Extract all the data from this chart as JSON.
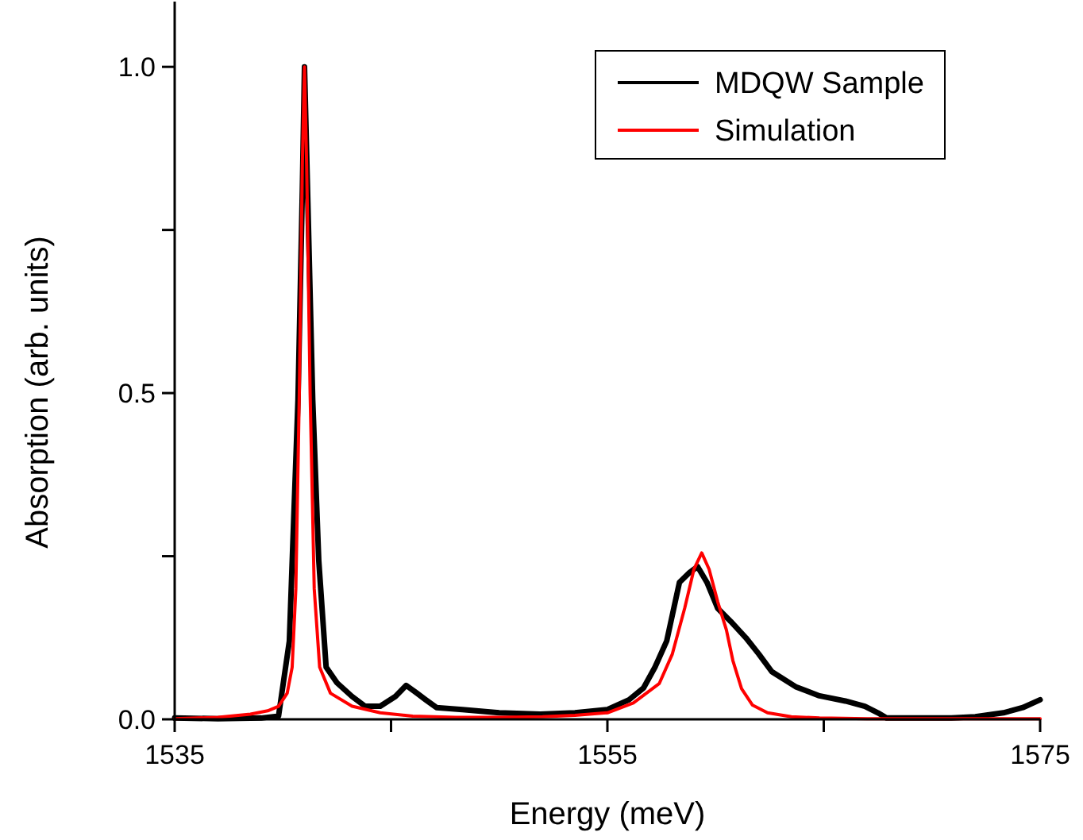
{
  "chart_data": {
    "type": "line",
    "xlabel": "Energy (meV)",
    "ylabel": "Absorption (arb. units)",
    "xlim": [
      1535,
      1575
    ],
    "ylim": [
      0,
      1.1
    ],
    "xticks": [
      1535,
      {
        "value": 1545,
        "label": null
      },
      1555,
      {
        "value": 1565,
        "label": null
      },
      1575
    ],
    "yticks": [
      {
        "value": 0,
        "label": "0.0"
      },
      {
        "value": 0.25,
        "label": null
      },
      {
        "value": 0.5,
        "label": "0.5"
      },
      {
        "value": 0.75,
        "label": null
      },
      {
        "value": 1,
        "label": "1.0"
      }
    ],
    "grid": false,
    "legend": "top right",
    "marker": "none",
    "line_style": "solid",
    "series": [
      {
        "name": "MDQW Sample",
        "color": "#000000",
        "x": [
          1535,
          1537,
          1539,
          1539.8,
          1540.3,
          1540.7,
          1540.9,
          1541.0,
          1541.15,
          1541.38,
          1541.66,
          1542.0,
          1542.5,
          1543.2,
          1543.8,
          1544.5,
          1545.2,
          1545.7,
          1546.2,
          1546.6,
          1547.1,
          1548.3,
          1550,
          1551.9,
          1553.5,
          1555,
          1556,
          1556.67,
          1557.2,
          1557.74,
          1558.33,
          1558.8,
          1559.17,
          1559.6,
          1560.1,
          1560.7,
          1561.4,
          1562.0,
          1562.6,
          1563.7,
          1564.8,
          1566.0,
          1566.9,
          1567.5,
          1567.9,
          1569,
          1570.9,
          1572,
          1573.3,
          1574.2,
          1575
        ],
        "values": [
          0.002,
          0.001,
          0.002,
          0.005,
          0.12,
          0.49,
          0.81,
          1.0,
          0.8,
          0.49,
          0.243,
          0.08,
          0.056,
          0.035,
          0.02,
          0.02,
          0.035,
          0.052,
          0.04,
          0.03,
          0.018,
          0.015,
          0.01,
          0.008,
          0.01,
          0.015,
          0.03,
          0.048,
          0.08,
          0.12,
          0.21,
          0.225,
          0.234,
          0.21,
          0.17,
          0.15,
          0.125,
          0.1,
          0.073,
          0.05,
          0.036,
          0.028,
          0.02,
          0.01,
          0.002,
          0.002,
          0.002,
          0.004,
          0.01,
          0.018,
          0.03
        ]
      },
      {
        "name": "Simulation",
        "color": "#ff0000",
        "x": [
          1535,
          1537,
          1538.5,
          1539.3,
          1539.8,
          1540.2,
          1540.43,
          1540.6,
          1540.76,
          1540.9,
          1541.0,
          1541.1,
          1541.26,
          1541.45,
          1541.7,
          1542.2,
          1543.2,
          1544.5,
          1546,
          1548,
          1550,
          1552,
          1553.5,
          1555,
          1556.2,
          1557.4,
          1558.0,
          1558.57,
          1559.0,
          1559.36,
          1559.7,
          1560.1,
          1560.5,
          1560.8,
          1561.2,
          1561.7,
          1562.4,
          1563.5,
          1564.8,
          1567,
          1570,
          1575
        ],
        "values": [
          0.001,
          0.003,
          0.008,
          0.013,
          0.02,
          0.04,
          0.08,
          0.2,
          0.5,
          0.85,
          1.0,
          0.85,
          0.5,
          0.2,
          0.08,
          0.04,
          0.02,
          0.01,
          0.005,
          0.003,
          0.003,
          0.004,
          0.006,
          0.01,
          0.025,
          0.055,
          0.1,
          0.17,
          0.23,
          0.255,
          0.23,
          0.18,
          0.137,
          0.09,
          0.047,
          0.022,
          0.01,
          0.004,
          0.002,
          0.001,
          0.001,
          0.001
        ]
      }
    ]
  }
}
